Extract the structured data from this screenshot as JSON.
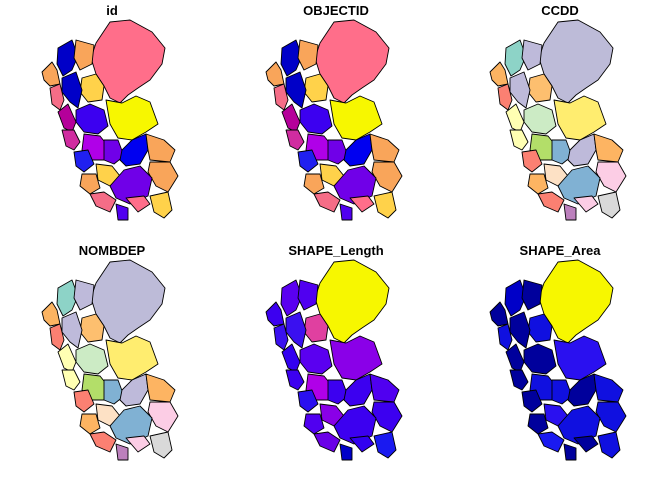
{
  "panels": [
    {
      "title": "id",
      "colors": [
        "#FF6E8A",
        "#0000C8",
        "#F9A55A",
        "#F9A55A",
        "#FFD24A",
        "#0000C8",
        "#F7F700",
        "#F56D87",
        "#3C00F0",
        "#B5009A",
        "#D02CA0",
        "#B000E8",
        "#7000E8",
        "#2020F0",
        "#0000F0",
        "#F9A55A",
        "#F9A55A",
        "#FFD24A",
        "#F9A55A",
        "#7000E8",
        "#F56D87",
        "#FF6E8A",
        "#FFD24A",
        "#5000F0"
      ]
    },
    {
      "title": "OBJECTID",
      "colors": [
        "#FF6E8A",
        "#0000C8",
        "#F9A55A",
        "#F9A55A",
        "#FFD24A",
        "#0000C8",
        "#F7F700",
        "#F56D87",
        "#3C00F0",
        "#B5009A",
        "#D02CA0",
        "#B000E8",
        "#7000E8",
        "#2020F0",
        "#0000F0",
        "#F9A55A",
        "#F9A55A",
        "#FFD24A",
        "#F9A55A",
        "#7000E8",
        "#F56D87",
        "#FF6E8A",
        "#FFD24A",
        "#5000F0"
      ]
    },
    {
      "title": "CCDD",
      "colors": [
        "#BDBBD8",
        "#8DD3C7",
        "#FCB462",
        "#BEBADA",
        "#FDBF6F",
        "#BEBADA",
        "#FFED6F",
        "#FB8072",
        "#CCEBC5",
        "#FFFFB3",
        "#FFFFB3",
        "#B3DE69",
        "#80B1D3",
        "#FB8072",
        "#BEBADA",
        "#FDB462",
        "#FCCDE5",
        "#FDE1C5",
        "#FDB462",
        "#80B1D3",
        "#FB8072",
        "#FCCDE5",
        "#D9D9D9",
        "#BC80BD"
      ]
    },
    {
      "title": "NOMBDEP",
      "colors": [
        "#BDBBD8",
        "#8DD3C7",
        "#FCB462",
        "#BEBADA",
        "#FDBF6F",
        "#BEBADA",
        "#FFED6F",
        "#FB8072",
        "#CCEBC5",
        "#FFFFB3",
        "#FFFFB3",
        "#B3DE69",
        "#80B1D3",
        "#FB8072",
        "#BEBADA",
        "#FDB462",
        "#FCCDE5",
        "#FDE1C5",
        "#FDB462",
        "#80B1D3",
        "#FB8072",
        "#FCCDE5",
        "#D9D9D9",
        "#BC80BD"
      ]
    },
    {
      "title": "SHAPE_Length",
      "colors": [
        "#F7F700",
        "#5A00F0",
        "#3C00F0",
        "#5000F0",
        "#E040A0",
        "#3A10F0",
        "#8A00E8",
        "#3A10F0",
        "#5A00F0",
        "#3200F0",
        "#3C00F0",
        "#B000E8",
        "#3C00F0",
        "#2A10F0",
        "#3C00F0",
        "#5000F0",
        "#3C00F0",
        "#8A00E8",
        "#5000F0",
        "#3C00F0",
        "#6A00E8",
        "#3200F0",
        "#1A1AF0",
        "#0000C8"
      ]
    },
    {
      "title": "SHAPE_Area",
      "colors": [
        "#F7F700",
        "#0000C8",
        "#00009C",
        "#00009C",
        "#1010E0",
        "#00009C",
        "#2A10F0",
        "#1010E0",
        "#00009C",
        "#00009C",
        "#00009C",
        "#1010E0",
        "#1010E0",
        "#00009C",
        "#00009C",
        "#1010E0",
        "#1010E0",
        "#2A10F0",
        "#00009C",
        "#1010E0",
        "#1A1AF0",
        "#00009C",
        "#1010E0",
        "#00009C"
      ]
    }
  ]
}
